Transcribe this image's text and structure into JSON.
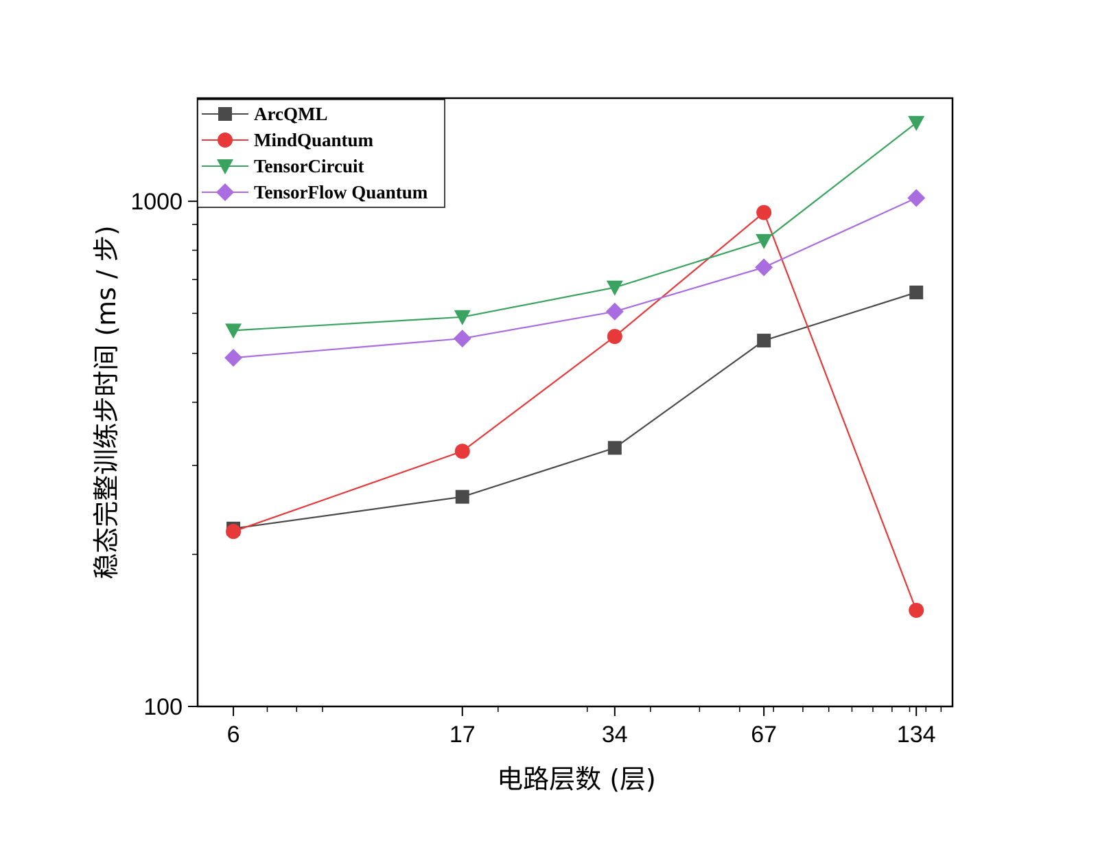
{
  "chart_data": {
    "type": "line",
    "xlabel": "电路层数 (层)",
    "ylabel": "稳态完整训练步时间 (ms / 步)",
    "x_scale": "log",
    "y_scale": "log",
    "x": [
      6,
      17,
      34,
      67,
      134
    ],
    "x_tick_labels": [
      "6",
      "17",
      "34",
      "67",
      "134"
    ],
    "ylim": [
      100,
      1600
    ],
    "y_major_ticks": [
      100,
      1000
    ],
    "y_tick_labels": [
      "100",
      "1000"
    ],
    "grid": false,
    "legend_position": "top-left",
    "series": [
      {
        "name": "ArcQML",
        "color": "#4a4a4a",
        "marker": "square",
        "values": [
          225,
          260,
          325,
          530,
          660
        ]
      },
      {
        "name": "MindQuantum",
        "color": "#e8393a",
        "marker": "circle",
        "values": [
          222,
          320,
          540,
          950,
          155
        ]
      },
      {
        "name": "TensorCircuit",
        "color": "#3aa35f",
        "marker": "triangle-down",
        "values": [
          555,
          590,
          675,
          835,
          1430
        ]
      },
      {
        "name": "TensorFlow Quantum",
        "color": "#a96de0",
        "marker": "diamond",
        "values": [
          490,
          535,
          605,
          740,
          1015
        ]
      }
    ]
  }
}
